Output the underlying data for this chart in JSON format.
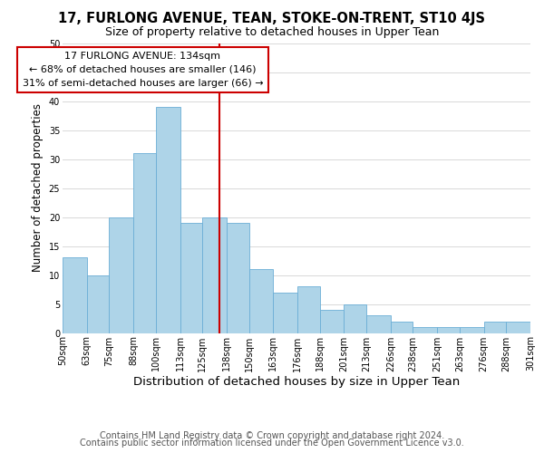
{
  "title": "17, FURLONG AVENUE, TEAN, STOKE-ON-TRENT, ST10 4JS",
  "subtitle": "Size of property relative to detached houses in Upper Tean",
  "xlabel": "Distribution of detached houses by size in Upper Tean",
  "ylabel": "Number of detached properties",
  "footer_line1": "Contains HM Land Registry data © Crown copyright and database right 2024.",
  "footer_line2": "Contains public sector information licensed under the Open Government Licence v3.0.",
  "bar_edges": [
    50,
    63,
    75,
    88,
    100,
    113,
    125,
    138,
    150,
    163,
    176,
    188,
    201,
    213,
    226,
    238,
    251,
    263,
    276,
    288,
    301
  ],
  "bar_heights": [
    13,
    10,
    20,
    31,
    39,
    19,
    20,
    19,
    11,
    7,
    8,
    4,
    5,
    3,
    2,
    1,
    1,
    1,
    2,
    2
  ],
  "bar_color": "#aed4e8",
  "bar_edgecolor": "#6baed6",
  "vline_x": 134,
  "vline_color": "#cc0000",
  "annotation_title": "17 FURLONG AVENUE: 134sqm",
  "annotation_line1": "← 68% of detached houses are smaller (146)",
  "annotation_line2": "31% of semi-detached houses are larger (66) →",
  "annotation_box_edgecolor": "#cc0000",
  "ylim": [
    0,
    50
  ],
  "yticks": [
    0,
    5,
    10,
    15,
    20,
    25,
    30,
    35,
    40,
    45,
    50
  ],
  "xtick_labels": [
    "50sqm",
    "63sqm",
    "75sqm",
    "88sqm",
    "100sqm",
    "113sqm",
    "125sqm",
    "138sqm",
    "150sqm",
    "163sqm",
    "176sqm",
    "188sqm",
    "201sqm",
    "213sqm",
    "226sqm",
    "238sqm",
    "251sqm",
    "263sqm",
    "276sqm",
    "288sqm",
    "301sqm"
  ],
  "grid_color": "#d8d8d8",
  "title_fontsize": 10.5,
  "subtitle_fontsize": 9,
  "xlabel_fontsize": 9.5,
  "ylabel_fontsize": 8.5,
  "footer_fontsize": 7,
  "annotation_fontsize": 8,
  "tick_fontsize": 7
}
